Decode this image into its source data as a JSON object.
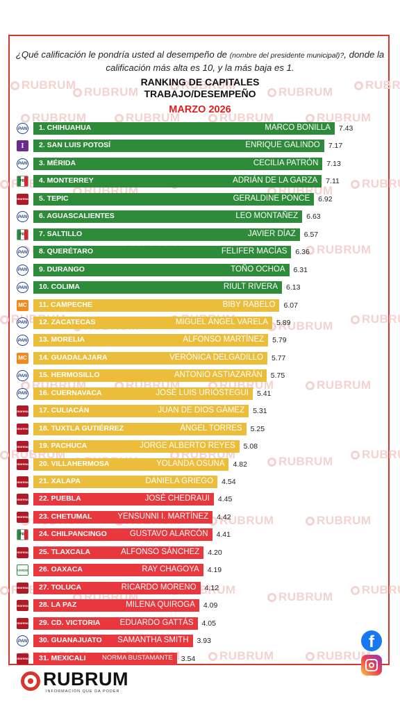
{
  "question_main": "¿Qué calificación le pondría usted al desempeño de ",
  "question_paren": "(nombre del presidente municipal)?",
  "question_end": ", donde la calificación más alta es 10, y la más baja es 1.",
  "watermark": "RUBRUM",
  "brand": {
    "name": "RUBRUM",
    "tagline": "INFORMACIÓN QUE DA PODER"
  },
  "social": {
    "facebook_glyph": "f"
  },
  "colors": {
    "green": "#2e8b3a",
    "yellow": "#ebbd3a",
    "red": "#e8383d",
    "border": "#d9362b",
    "accent": "#e01e1e"
  },
  "chart_data": {
    "type": "bar",
    "orientation": "horizontal",
    "title": "RANKING DE CAPITALES",
    "title2": "TRABAJO/DESEMPEÑO",
    "subtitle": "MARZO 2026",
    "xlim": [
      0,
      10
    ],
    "rows": [
      {
        "city": "1. CHIHUAHUA",
        "mayor": "MARCO BONILLA",
        "value": 7.43,
        "label": "7.43",
        "party": "PAN",
        "color": "green"
      },
      {
        "city": "2. SAN LUIS POTOSÍ",
        "mayor": "ENRIQUE GALINDO",
        "value": 7.17,
        "label": "7.17",
        "party": "PT",
        "color": "green"
      },
      {
        "city": "3. MÉRIDA",
        "mayor": "CECILIA PATRÓN",
        "value": 7.13,
        "label": "7.13",
        "party": "PAN",
        "color": "green"
      },
      {
        "city": "4. MONTERREY",
        "mayor": "ADRIÁN DE LA GARZA",
        "value": 7.11,
        "label": "7.11",
        "party": "PRI",
        "color": "green"
      },
      {
        "city": "5. TEPIC",
        "mayor": "GERALDINE PONCE",
        "value": 6.92,
        "label": "6.92",
        "party": "morena",
        "color": "green"
      },
      {
        "city": "6. AGUASCALIENTES",
        "mayor": "LEO MONTAÑEZ",
        "value": 6.63,
        "label": "6.63",
        "party": "PAN",
        "color": "green"
      },
      {
        "city": "7. SALTILLO",
        "mayor": "JAVIER DÍAZ",
        "value": 6.57,
        "label": "6.57",
        "party": "PRI",
        "color": "green"
      },
      {
        "city": "8. QUERÉTARO",
        "mayor": "FELIFER MACÍAS",
        "value": 6.36,
        "label": "6.36",
        "party": "PAN",
        "color": "green"
      },
      {
        "city": "9. DURANGO",
        "mayor": "TOÑO OCHOA",
        "value": 6.31,
        "label": "6.31",
        "party": "PAN",
        "color": "green"
      },
      {
        "city": "10. COLIMA",
        "mayor": "RIULT RIVERA",
        "value": 6.13,
        "label": "6.13",
        "party": "PAN",
        "color": "green"
      },
      {
        "city": "11. CAMPECHE",
        "mayor": "BIBY RABELO",
        "value": 6.07,
        "label": "6.07",
        "party": "MC",
        "color": "yellow"
      },
      {
        "city": "12. ZACATECAS",
        "mayor": "MIGUEL ÁNGEL VARELA",
        "value": 5.89,
        "label": "5.89",
        "party": "PAN",
        "color": "yellow"
      },
      {
        "city": "13. MORELIA",
        "mayor": "ALFONSO MARTÍNEZ",
        "value": 5.79,
        "label": "5.79",
        "party": "PAN",
        "color": "yellow"
      },
      {
        "city": "14. GUADALAJARA",
        "mayor": "VERÓNICA DELGADILLO",
        "value": 5.77,
        "label": "5.77",
        "party": "MC",
        "color": "yellow"
      },
      {
        "city": "15. HERMOSILLO",
        "mayor": "ANTONIO ASTIAZARÁN",
        "value": 5.75,
        "label": "5.75",
        "party": "PAN",
        "color": "yellow"
      },
      {
        "city": "16. CUERNAVACA",
        "mayor": "JOSÉ LUIS URIÓSTEGUI",
        "value": 5.41,
        "label": "5.41",
        "party": "PAN",
        "color": "yellow"
      },
      {
        "city": "17. CULIACÁN",
        "mayor": "JUAN DE DIOS GÁMEZ",
        "value": 5.31,
        "label": "5.31",
        "party": "morena",
        "color": "yellow"
      },
      {
        "city": "18. TUXTLA GUTIÉRREZ",
        "mayor": "ÁNGEL TORRES",
        "value": 5.25,
        "label": "5.25",
        "party": "morena",
        "color": "yellow"
      },
      {
        "city": "19. PACHUCA",
        "mayor": "JORGE ALBERTO REYES",
        "value": 5.08,
        "label": "5.08",
        "party": "morena",
        "color": "yellow"
      },
      {
        "city": "20. VILLAHERMOSA",
        "mayor": "YOLANDA OSUNA",
        "value": 4.82,
        "label": "4.82",
        "party": "morena",
        "color": "yellow"
      },
      {
        "city": "21. XALAPA",
        "mayor": "DANIELA GRIEGO",
        "value": 4.54,
        "label": "4.54",
        "party": "morena",
        "color": "yellow"
      },
      {
        "city": "22. PUEBLA",
        "mayor": "JOSÉ CHEDRAUI",
        "value": 4.45,
        "label": "4.45",
        "party": "morena",
        "color": "red"
      },
      {
        "city": "23. CHETUMAL",
        "mayor": "YENSUNNI I. MARTÍNEZ",
        "value": 4.42,
        "label": "4.42",
        "party": "morena",
        "color": "red"
      },
      {
        "city": "24. CHILPANCINGO",
        "mayor": "GUSTAVO ALARCÓN",
        "value": 4.41,
        "label": "4.41",
        "party": "PRI",
        "color": "red"
      },
      {
        "city": "25. TLAXCALA",
        "mayor": "ALFONSO SÁNCHEZ",
        "value": 4.2,
        "label": "4.20",
        "party": "morena",
        "color": "red"
      },
      {
        "city": "26. OAXACA",
        "mayor": "RAY CHAGOYA",
        "value": 4.19,
        "label": "4.19",
        "party": "VERDE",
        "color": "red"
      },
      {
        "city": "27. TOLUCA",
        "mayor": "RICARDO MORENO",
        "value": 4.12,
        "label": "4.12",
        "party": "morena",
        "color": "red"
      },
      {
        "city": "28. LA PAZ",
        "mayor": "MILENA QUIROGA",
        "value": 4.09,
        "label": "4.09",
        "party": "morena",
        "color": "red"
      },
      {
        "city": "29. CD. VICTORIA",
        "mayor": "EDUARDO GATTÁS",
        "value": 4.05,
        "label": "4.05",
        "party": "morena",
        "color": "red"
      },
      {
        "city": "30. GUANAJUATO",
        "mayor": "SAMANTHA SMITH",
        "value": 3.93,
        "label": "3.93",
        "party": "PAN",
        "color": "red"
      },
      {
        "city": "31. MEXICALI",
        "mayor": "NORMA BUSTAMANTE",
        "value": 3.54,
        "label": "3.54",
        "party": "morena",
        "color": "red"
      }
    ]
  }
}
